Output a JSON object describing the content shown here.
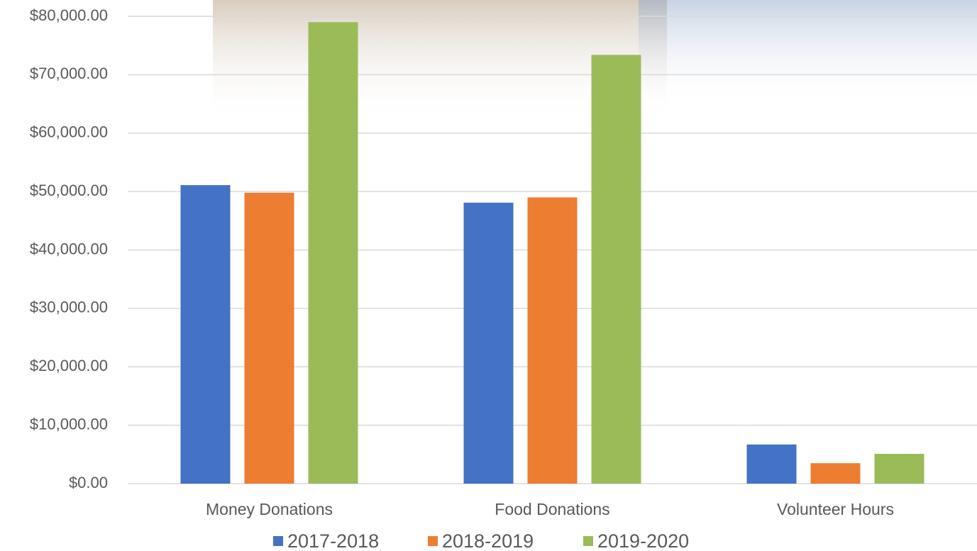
{
  "chart_data": {
    "type": "bar",
    "categories": [
      "Money Donations",
      "Food Donations",
      "Volunteer Hours"
    ],
    "series": [
      {
        "name": "2017-2018",
        "color": "#4472c4",
        "values": [
          51100,
          48100,
          6700
        ]
      },
      {
        "name": "2018-2019",
        "color": "#ed7d31",
        "values": [
          49800,
          49000,
          3500
        ]
      },
      {
        "name": "2019-2020",
        "color": "#9bbb59",
        "values": [
          79000,
          73400,
          5100
        ]
      }
    ],
    "ylim": [
      0,
      80000
    ],
    "yticks": [
      {
        "value": 0,
        "label": "$0.00"
      },
      {
        "value": 10000,
        "label": "$10,000.00"
      },
      {
        "value": 20000,
        "label": "$20,000.00"
      },
      {
        "value": 30000,
        "label": "$30,000.00"
      },
      {
        "value": 40000,
        "label": "$40,000.00"
      },
      {
        "value": 50000,
        "label": "$50,000.00"
      },
      {
        "value": 60000,
        "label": "$60,000.00"
      },
      {
        "value": 70000,
        "label": "$70,000.00"
      },
      {
        "value": 80000,
        "label": "$80,000.00"
      }
    ],
    "grid": true,
    "legend": "bottom"
  }
}
